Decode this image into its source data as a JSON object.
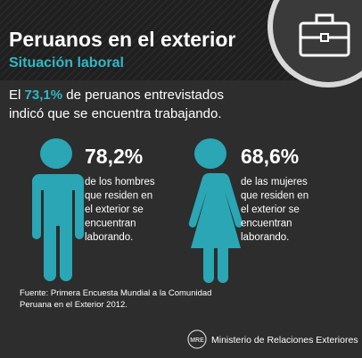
{
  "header": {
    "title": "Peruanos en el exterior",
    "subtitle": "Situación laboral"
  },
  "intro": {
    "lead": "El",
    "highlight": "73,1%",
    "line1_rest": "de peruanos entrevistados",
    "line2": "indicó que se encuentra trabajando."
  },
  "stats": [
    {
      "value": "78,2%",
      "lines": [
        "de los hombres",
        "que residen en",
        "el exterior se",
        "encuentran",
        "laborando."
      ]
    },
    {
      "value": "68,6%",
      "lines": [
        "de las mujeres",
        "que residen en",
        "el exterior se",
        "encuentran",
        "laborando."
      ]
    }
  ],
  "source": [
    "Fuente: Primera Encuesta Mundial a la Comunidad",
    "Peruana en el Exterior 2012."
  ],
  "footer": {
    "logo": "MRE",
    "ministry": "Ministerio de Relaciones Exteriores"
  }
}
